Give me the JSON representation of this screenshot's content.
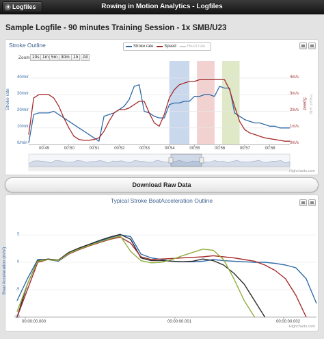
{
  "topbar": {
    "back_label": "Logfiles",
    "title": "Rowing in Motion Analytics - Logfiles"
  },
  "page_title": "Sample Logfile - 90 minutes Training Session - 1x SMB/U23",
  "stroke_chart": {
    "title": "Stroke Outline",
    "zoom_label": "Zoom",
    "zoom_buttons": [
      "10s",
      "1m",
      "5m",
      "30m",
      "1h",
      "All"
    ],
    "legend": [
      {
        "name": "Stroke rate",
        "color": "#2f6aa8",
        "active": true
      },
      {
        "name": "Speed",
        "color": "#a52a2a",
        "active": true
      },
      {
        "name": "Heart rate",
        "color": "#bbbbbb",
        "active": false
      }
    ],
    "left_axis_title": "Stroke rate",
    "left_ticks": [
      "40/min",
      "30/min",
      "20/min",
      "10/min",
      "0/min"
    ],
    "right_axis_title": "Speed",
    "right_axis_title_2": "Heart rate",
    "right_ticks": [
      "4m/s",
      "3m/s",
      "2m/s",
      "1m/s",
      "0m/s"
    ],
    "x_ticks": [
      "00:49",
      "00:50",
      "00:51",
      "00:52",
      "00:53",
      "00:54",
      "00:55",
      "00:56",
      "00:57",
      "00:58"
    ],
    "navigator_ticks": [
      "00:15",
      "00:30",
      "00:45",
      "01:00"
    ],
    "credit": "Highcharts.com"
  },
  "download_label": "Download Raw Data",
  "accel_chart": {
    "title": "Typical Stroke BoatAcceleration Outline",
    "y_axis_title": "Boat Acceleration (m/s²)",
    "y_ticks": [
      "5",
      "0",
      "-5",
      "-10"
    ],
    "x_ticks": [
      "00:00:00.000",
      "00:00:00.001",
      "00:00:00.002"
    ],
    "credit": "Highcharts.com"
  },
  "chart_data": [
    {
      "type": "line",
      "title": "Stroke Outline",
      "x": [
        "00:48.4",
        "00:48.6",
        "00:48.8",
        "00:49.0",
        "00:49.2",
        "00:49.4",
        "00:49.6",
        "00:49.8",
        "00:50.0",
        "00:50.2",
        "00:50.4",
        "00:50.6",
        "00:50.8",
        "00:51.0",
        "00:51.2",
        "00:51.4",
        "00:51.6",
        "00:51.8",
        "00:52.0",
        "00:52.2",
        "00:52.4",
        "00:52.6",
        "00:52.8",
        "00:53.0",
        "00:53.2",
        "00:53.4",
        "00:53.6",
        "00:53.8",
        "00:54.0",
        "00:54.2",
        "00:54.4",
        "00:54.6",
        "00:54.8",
        "00:55.0",
        "00:55.2",
        "00:55.4",
        "00:55.6",
        "00:55.8",
        "00:56.0",
        "00:56.2",
        "00:56.4",
        "00:56.6",
        "00:56.8",
        "00:57.0",
        "00:57.2",
        "00:57.4",
        "00:57.6",
        "00:57.8",
        "00:58.0",
        "00:58.2",
        "00:58.4",
        "00:58.6",
        "00:58.8"
      ],
      "series": [
        {
          "name": "Stroke rate",
          "axis": "left",
          "values": [
            1,
            18,
            19,
            19,
            19,
            20,
            18,
            16,
            14,
            12,
            10,
            8,
            6,
            4,
            2,
            17,
            18,
            19,
            21,
            23,
            27,
            35,
            36,
            20,
            19,
            17,
            16,
            16,
            24,
            25,
            25,
            26,
            26,
            29,
            29,
            30,
            30,
            29,
            35,
            34,
            34,
            19,
            17,
            15,
            14,
            13,
            13,
            12,
            11,
            11,
            10,
            10,
            10
          ]
        },
        {
          "name": "Speed",
          "axis": "right",
          "values": [
            0.6,
            2.8,
            3.0,
            3.0,
            3.0,
            2.8,
            2.3,
            1.6,
            1.0,
            0.5,
            0.3,
            0.25,
            0.25,
            0.3,
            0.4,
            0.8,
            1.4,
            1.9,
            2.1,
            2.1,
            2.2,
            2.4,
            2.6,
            2.6,
            1.9,
            1.3,
            1.1,
            1.8,
            2.8,
            3.3,
            3.6,
            3.7,
            3.8,
            3.8,
            3.9,
            3.9,
            3.9,
            3.9,
            3.9,
            3.9,
            3.3,
            2.3,
            1.4,
            0.9,
            0.7,
            0.6,
            0.5,
            0.4,
            0.35,
            0.3,
            0.25,
            0.2,
            0.2
          ]
        }
      ],
      "left_ylim": [
        0,
        40
      ],
      "right_ylim": [
        0,
        4
      ],
      "highlight_bands": [
        {
          "from": "00:54.0",
          "to": "00:54.8",
          "color": "#c9d8ec"
        },
        {
          "from": "00:55.1",
          "to": "00:55.8",
          "color": "#f2d1d1"
        },
        {
          "from": "00:56.1",
          "to": "00:56.8",
          "color": "#dfe8c7"
        }
      ]
    },
    {
      "type": "line",
      "title": "Typical Stroke BoatAcceleration Outline",
      "x": [
        0,
        0.1,
        0.2,
        0.3,
        0.4,
        0.5,
        0.6,
        0.7,
        0.8,
        0.9,
        1.0,
        1.1,
        1.2,
        1.3,
        1.4,
        1.5,
        1.6,
        1.7,
        1.8,
        1.9,
        2.0,
        2.1,
        2.2,
        2.3,
        2.4,
        2.5,
        2.6,
        2.7,
        2.8,
        2.9
      ],
      "series": [
        {
          "name": "",
          "color": "#2f6aa8",
          "values": [
            -7,
            -3,
            0.5,
            0.5,
            0.2,
            1.5,
            2.5,
            3.2,
            3.8,
            4.5,
            5.0,
            4.7,
            1.5,
            0.8,
            0.5,
            0.2,
            0.1,
            0.1,
            0.2,
            0.5,
            0.3,
            0.2,
            0.1,
            0.0,
            0.0,
            -0.2,
            -0.5,
            -1.0,
            -3.0,
            -7.5
          ]
        },
        {
          "name": "",
          "color": "#2a2a2a",
          "values": [
            -10,
            -4,
            0.3,
            0.6,
            0.4,
            1.8,
            2.6,
            3.3,
            4.0,
            4.6,
            5.1,
            4.2,
            0.8,
            0.3,
            0.3,
            0.2,
            0.1,
            0.2,
            0.6,
            0.3,
            -0.5,
            -2,
            -4,
            -7,
            -10,
            null,
            null,
            null,
            null,
            null
          ]
        },
        {
          "name": "",
          "color": "#a52a2a",
          "values": [
            -10,
            -5,
            0,
            0.5,
            0.3,
            1.5,
            2.3,
            3.0,
            3.6,
            4.2,
            4.6,
            3.5,
            1.0,
            0.5,
            0.6,
            0.7,
            0.8,
            0.9,
            1.0,
            1.2,
            1.0,
            0.8,
            0.5,
            0.2,
            -0.5,
            -1.5,
            -3,
            -6,
            -10,
            null
          ]
        },
        {
          "name": "",
          "color": "#8fad3c",
          "values": [
            -9,
            -4,
            0.2,
            0.5,
            0.3,
            1.6,
            2.4,
            3.1,
            3.7,
            4.3,
            4.8,
            2.0,
            0.3,
            -0.1,
            0.0,
            0.5,
            1.2,
            1.8,
            2.4,
            2.2,
            0.5,
            -3,
            -7,
            -10,
            null,
            null,
            null,
            null,
            null,
            null
          ]
        }
      ],
      "ylim": [
        -10,
        5
      ]
    }
  ]
}
